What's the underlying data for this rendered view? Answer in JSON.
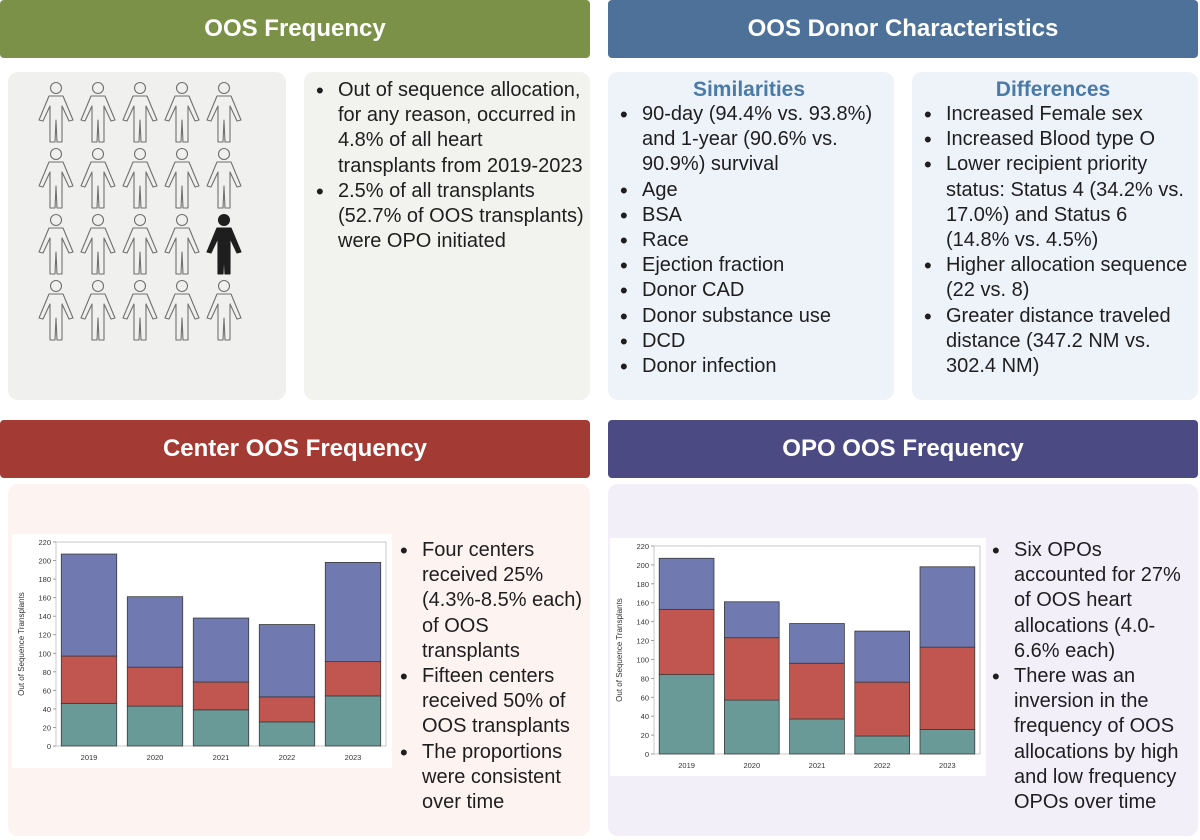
{
  "headers": {
    "oos_frequency": "OOS Frequency",
    "donor_characteristics": "OOS Donor Characteristics",
    "center_oos": "Center OOS Frequency",
    "opo_oos": "OPO OOS Frequency"
  },
  "frequency_bullets": [
    "Out of sequence allocation, for any reason, occurred in 4.8% of all heart transplants from 2019-2023",
    "2.5% of all transplants (52.7% of OOS transplants) were OPO initiated"
  ],
  "pictogram": {
    "total": 20,
    "highlighted": 1,
    "outline_color": "#707070",
    "highlight_color": "#1e1e1e"
  },
  "similarities": {
    "title": "Similarities",
    "items": [
      "90-day (94.4% vs. 93.8%) and 1-year  (90.6% vs. 90.9%) survival",
      "Age",
      "BSA",
      "Race",
      "Ejection fraction",
      "Donor CAD",
      "Donor substance use",
      "DCD",
      "Donor infection"
    ]
  },
  "differences": {
    "title": "Differences",
    "items": [
      "Increased Female sex",
      "Increased Blood type O",
      "Lower recipient priority status: Status 4 (34.2% vs. 17.0%) and Status 6 (14.8% vs. 4.5%)",
      "Higher allocation sequence (22 vs. 8)",
      "Greater distance traveled distance (347.2 NM vs. 302.4 NM)"
    ]
  },
  "center_bullets": [
    "Four centers received 25% (4.3%-8.5% each) of OOS transplants",
    "Fifteen centers received 50% of OOS transplants",
    "The proportions were consistent over time"
  ],
  "opo_bullets": [
    "Six OPOs accounted for 27% of OOS heart allocations (4.0-6.6% each)",
    "There was an inversion in the frequency of OOS allocations by high and low frequency OPOs over time"
  ],
  "colors": {
    "bottom_series": "#6a9a98",
    "middle_series": "#c0564f",
    "top_series": "#7079b0"
  },
  "chart_data": [
    {
      "type": "bar",
      "stacked": true,
      "categories": [
        "2019",
        "2020",
        "2021",
        "2022",
        "2023"
      ],
      "ylabel": "Out of Sequence Transplants",
      "ylim": [
        0,
        220
      ],
      "yticks": [
        0,
        20,
        40,
        60,
        80,
        100,
        120,
        140,
        160,
        180,
        200,
        220
      ],
      "series": [
        {
          "values": [
            46,
            43,
            39,
            26,
            54
          ]
        },
        {
          "values": [
            51,
            42,
            30,
            27,
            37
          ]
        },
        {
          "values": [
            110,
            76,
            69,
            78,
            107
          ]
        }
      ]
    },
    {
      "type": "bar",
      "stacked": true,
      "categories": [
        "2019",
        "2020",
        "2021",
        "2022",
        "2023"
      ],
      "ylabel": "Out of Sequence Transplants",
      "ylim": [
        0,
        220
      ],
      "yticks": [
        0,
        20,
        40,
        60,
        80,
        100,
        120,
        140,
        160,
        180,
        200,
        220
      ],
      "series": [
        {
          "values": [
            84,
            57,
            37,
            19,
            26
          ]
        },
        {
          "values": [
            69,
            66,
            59,
            57,
            87
          ]
        },
        {
          "values": [
            54,
            38,
            42,
            54,
            85
          ]
        }
      ]
    }
  ]
}
